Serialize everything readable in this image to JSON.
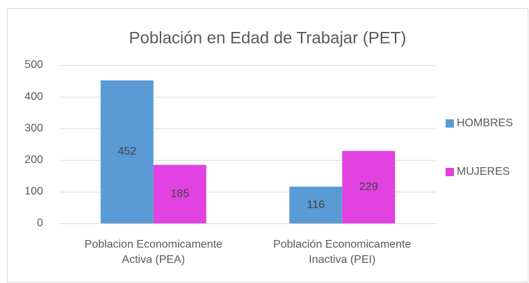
{
  "chart_data": {
    "type": "bar",
    "title": "Población en Edad de Trabajar (PET)",
    "categories": [
      "Poblacion Economicamente Activa (PEA)",
      "Población Economicamente Inactiva (PEI)"
    ],
    "series": [
      {
        "name": "HOMBRES",
        "color": "#5b9bd5",
        "values": [
          452,
          116
        ]
      },
      {
        "name": "MUJERES",
        "color": "#e142e1",
        "values": [
          185,
          229
        ]
      }
    ],
    "ylim": [
      0,
      500
    ],
    "yticks": [
      0,
      100,
      200,
      300,
      400,
      500
    ],
    "grid": true,
    "legend": "right"
  }
}
